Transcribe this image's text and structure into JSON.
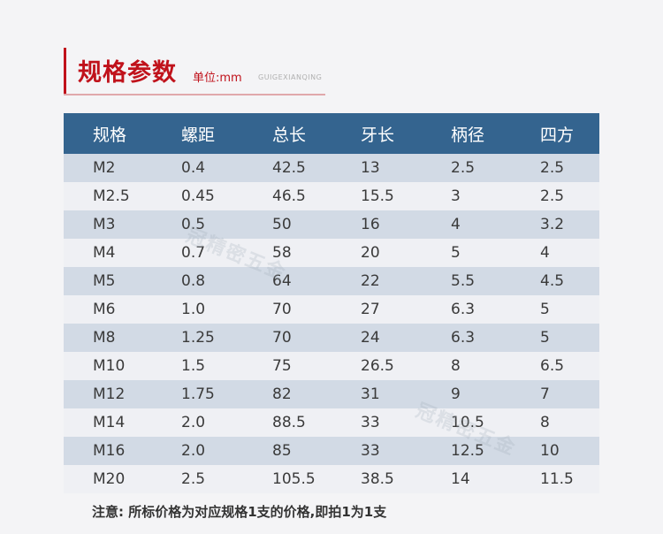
{
  "header": {
    "title": "规格参数",
    "unit": "单位:mm",
    "pinyin": "GUIGEXIANQING"
  },
  "table": {
    "columns": [
      "规格",
      "螺距",
      "总长",
      "牙长",
      "柄径",
      "四方"
    ],
    "rows": [
      [
        "M2",
        "0.4",
        "42.5",
        "13",
        "2.5",
        "2.5"
      ],
      [
        "M2.5",
        "0.45",
        "46.5",
        "15.5",
        "3",
        "2.5"
      ],
      [
        "M3",
        "0.5",
        "50",
        "16",
        "4",
        "3.2"
      ],
      [
        "M4",
        "0.7",
        "58",
        "20",
        "5",
        "4"
      ],
      [
        "M5",
        "0.8",
        "64",
        "22",
        "5.5",
        "4.5"
      ],
      [
        "M6",
        "1.0",
        "70",
        "27",
        "6.3",
        "5"
      ],
      [
        "M8",
        "1.25",
        "70",
        "24",
        "6.3",
        "5"
      ],
      [
        "M10",
        "1.5",
        "75",
        "26.5",
        "8",
        "6.5"
      ],
      [
        "M12",
        "1.75",
        "82",
        "31",
        "9",
        "7"
      ],
      [
        "M14",
        "2.0",
        "88.5",
        "33",
        "10.5",
        "8"
      ],
      [
        "M16",
        "2.0",
        "85",
        "33",
        "12.5",
        "10"
      ],
      [
        "M20",
        "2.5",
        "105.5",
        "38.5",
        "14",
        "11.5"
      ]
    ]
  },
  "watermark": "冠精密五金",
  "note": "注意: 所标价格为对应规格1支的价格,即拍1为1支",
  "colors": {
    "accent": "#c0121b",
    "table_header": "#34648f",
    "row_dark": "#d2dae5",
    "row_light": "#eff0f4",
    "background": "#f4f4f6"
  }
}
